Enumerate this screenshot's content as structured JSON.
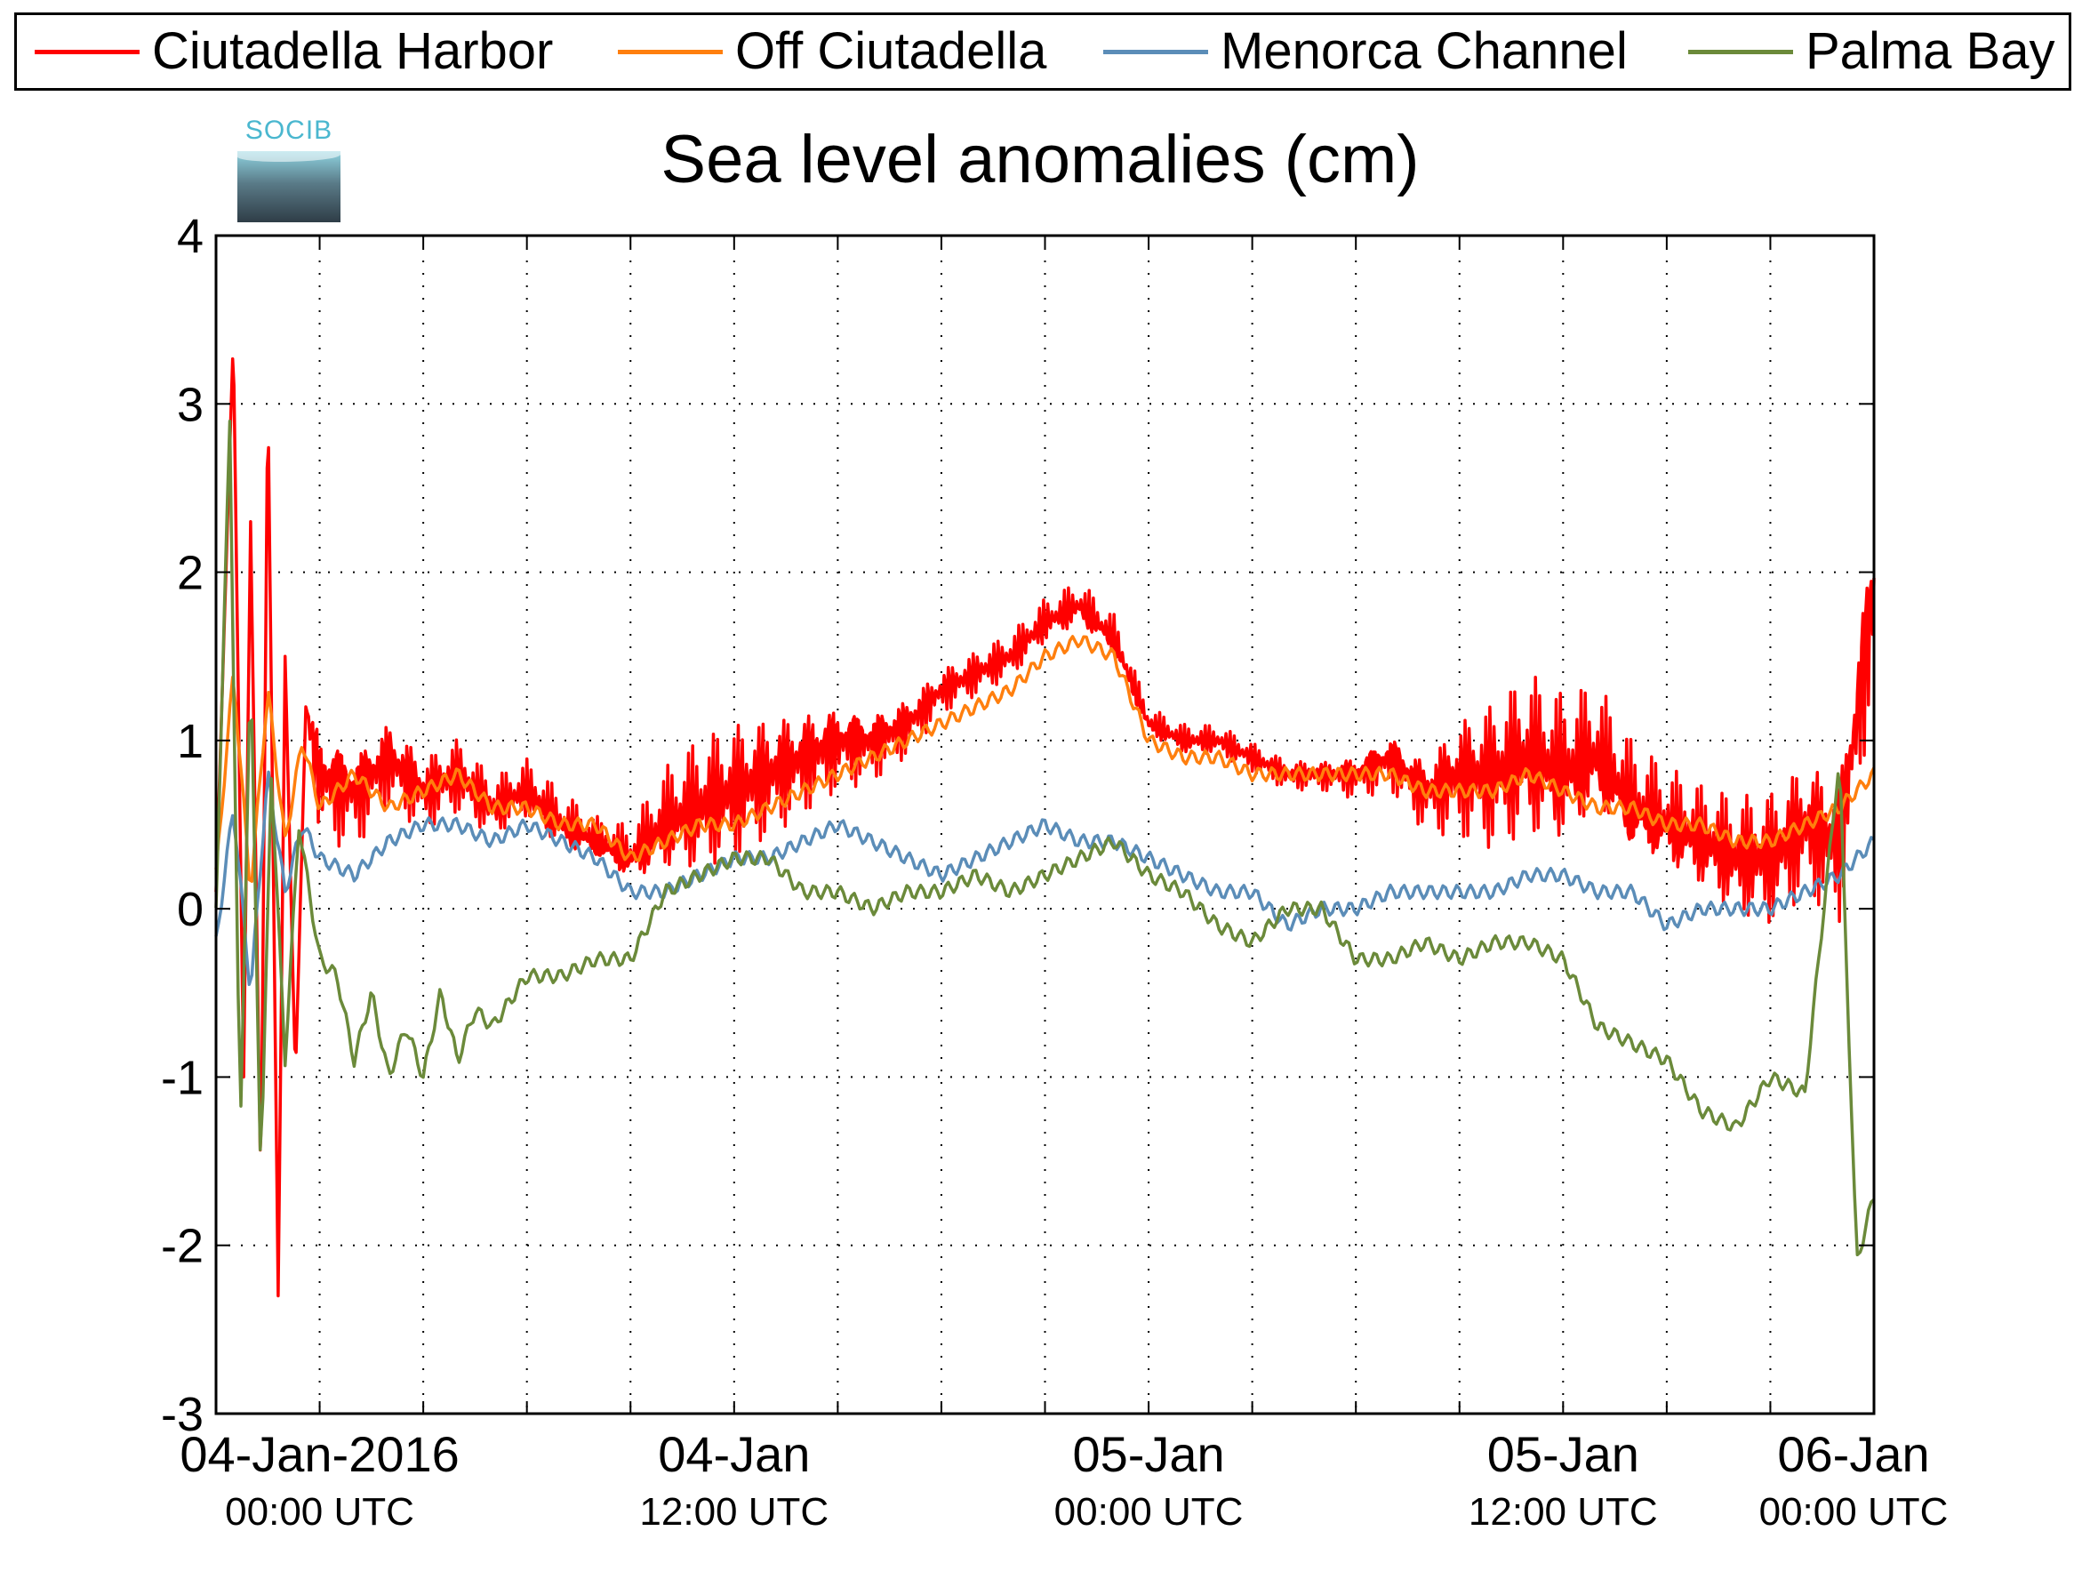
{
  "legend": {
    "items": [
      {
        "label": "Ciutadella Harbor",
        "color": "#ff0000"
      },
      {
        "label": "Off Ciutadella",
        "color": "#ff7f0e"
      },
      {
        "label": "Menorca Channel",
        "color": "#5b8db8"
      },
      {
        "label": "Palma Bay",
        "color": "#6b8a3a"
      }
    ]
  },
  "logo": {
    "text": "SOCIB"
  },
  "chart_data": {
    "type": "line",
    "title": "Sea level anomalies (cm)",
    "xlabel": "",
    "ylabel": "",
    "ylim": [
      -3,
      4
    ],
    "xlim_hours": [
      -3,
      45
    ],
    "grid": true,
    "legend_position": "top",
    "yticks": [
      "-3",
      "-2",
      "-1",
      "0",
      "1",
      "2",
      "3",
      "4"
    ],
    "xtick_labels": [
      {
        "hour": 0,
        "date": "04-Jan-2016",
        "time": "00:00 UTC"
      },
      {
        "hour": 12,
        "date": "04-Jan",
        "time": "12:00 UTC"
      },
      {
        "hour": 24,
        "date": "05-Jan",
        "time": "00:00 UTC"
      },
      {
        "hour": 36,
        "date": "05-Jan",
        "time": "12:00 UTC"
      },
      {
        "hour": 48,
        "date": "06-Jan",
        "time": "00:00 UTC"
      }
    ],
    "series": [
      {
        "name": "Ciutadella Harbor",
        "color": "#ff0000",
        "x": [
          -3,
          -2.5,
          -2.2,
          -2,
          -1.7,
          -1.5,
          -1.2,
          -1,
          -0.7,
          -0.4,
          0,
          1,
          2,
          3,
          4,
          5,
          6,
          7,
          8,
          9,
          10,
          11,
          12,
          13,
          14,
          15,
          16,
          17,
          18,
          19,
          20,
          21,
          22,
          23,
          24,
          25,
          26,
          27,
          28,
          29,
          30,
          31,
          32,
          33,
          34,
          35,
          36,
          37,
          38,
          39,
          40,
          41,
          42,
          43,
          44,
          45
        ],
        "y": [
          0.1,
          3.4,
          -1.0,
          2.3,
          -1.7,
          3.1,
          -2.3,
          1.5,
          -1.0,
          1.2,
          0.8,
          0.7,
          0.9,
          0.7,
          0.8,
          0.6,
          0.7,
          0.5,
          0.4,
          0.3,
          0.5,
          0.6,
          0.7,
          0.8,
          0.9,
          1.0,
          1.0,
          1.1,
          1.3,
          1.4,
          1.5,
          1.7,
          1.8,
          1.6,
          1.1,
          1.0,
          1.0,
          0.9,
          0.8,
          0.8,
          0.8,
          0.9,
          0.7,
          0.8,
          0.8,
          0.9,
          0.8,
          0.9,
          0.6,
          0.5,
          0.4,
          0.3,
          0.3,
          0.5,
          0.4,
          1.9
        ],
        "amp": [
          0,
          0,
          0,
          0,
          0,
          0,
          0,
          0,
          0,
          0,
          0.4,
          0.35,
          0.3,
          0.25,
          0.25,
          0.2,
          0.2,
          0.2,
          0.15,
          0.2,
          0.35,
          0.45,
          0.45,
          0.4,
          0.35,
          0.3,
          0.25,
          0.2,
          0.15,
          0.15,
          0.15,
          0.15,
          0.15,
          0.15,
          0.1,
          0.1,
          0.1,
          0.1,
          0.1,
          0.1,
          0.15,
          0.2,
          0.25,
          0.4,
          0.5,
          0.55,
          0.5,
          0.45,
          0.4,
          0.35,
          0.35,
          0.4,
          0.45,
          0.45,
          0.5,
          0.6
        ]
      },
      {
        "name": "Off Ciutadella",
        "color": "#ff7f0e",
        "x": [
          -3,
          -2.5,
          -2,
          -1.5,
          -1,
          -0.5,
          0,
          1,
          2,
          3,
          4,
          5,
          6,
          7,
          8,
          9,
          10,
          11,
          12,
          13,
          14,
          15,
          16,
          17,
          18,
          19,
          20,
          21,
          22,
          23,
          24,
          25,
          26,
          27,
          28,
          29,
          30,
          31,
          32,
          33,
          34,
          35,
          36,
          37,
          38,
          39,
          40,
          41,
          42,
          43,
          44,
          45
        ],
        "y": [
          0.2,
          1.4,
          0.1,
          1.3,
          0.4,
          1.0,
          0.6,
          0.8,
          0.6,
          0.7,
          0.8,
          0.6,
          0.6,
          0.5,
          0.5,
          0.3,
          0.4,
          0.5,
          0.5,
          0.6,
          0.7,
          0.8,
          0.9,
          1.0,
          1.1,
          1.2,
          1.3,
          1.5,
          1.6,
          1.5,
          1.0,
          0.9,
          0.9,
          0.8,
          0.8,
          0.8,
          0.8,
          0.8,
          0.7,
          0.7,
          0.7,
          0.8,
          0.7,
          0.6,
          0.6,
          0.5,
          0.5,
          0.4,
          0.4,
          0.5,
          0.6,
          0.8
        ],
        "amp": []
      },
      {
        "name": "Menorca Channel",
        "color": "#5b8db8",
        "x": [
          -3,
          -2.5,
          -2,
          -1.5,
          -1,
          -0.5,
          0,
          1,
          2,
          3,
          4,
          5,
          6,
          7,
          8,
          9,
          10,
          11,
          12,
          13,
          14,
          15,
          16,
          17,
          18,
          19,
          20,
          21,
          22,
          23,
          24,
          25,
          26,
          27,
          28,
          29,
          30,
          31,
          32,
          33,
          34,
          35,
          36,
          37,
          38,
          39,
          40,
          41,
          42,
          43,
          44,
          45
        ],
        "y": [
          -0.2,
          0.6,
          -0.5,
          0.8,
          0.1,
          0.5,
          0.3,
          0.2,
          0.4,
          0.5,
          0.5,
          0.4,
          0.5,
          0.4,
          0.3,
          0.1,
          0.1,
          0.2,
          0.3,
          0.3,
          0.4,
          0.5,
          0.4,
          0.3,
          0.2,
          0.3,
          0.4,
          0.5,
          0.4,
          0.4,
          0.3,
          0.2,
          0.1,
          0.1,
          -0.1,
          0.0,
          0.0,
          0.1,
          0.1,
          0.1,
          0.1,
          0.2,
          0.2,
          0.1,
          0.1,
          -0.1,
          0.0,
          0.0,
          0.0,
          0.1,
          0.2,
          0.4
        ],
        "amp": []
      },
      {
        "name": "Palma Bay",
        "color": "#6b8a3a",
        "x": [
          -3,
          -2.6,
          -2.3,
          -2,
          -1.7,
          -1.4,
          -1,
          -0.6,
          0,
          0.5,
          1,
          1.5,
          2,
          2.5,
          3,
          3.5,
          4,
          4.5,
          5,
          6,
          7,
          8,
          9,
          10,
          11,
          12,
          13,
          14,
          15,
          16,
          17,
          18,
          19,
          20,
          21,
          22,
          23,
          24,
          25,
          26,
          27,
          28,
          29,
          30,
          31,
          32,
          33,
          34,
          35,
          36,
          37,
          38,
          39,
          40,
          41,
          42,
          43,
          44,
          44.5,
          45
        ],
        "y": [
          0.0,
          2.9,
          -1.4,
          1.5,
          -1.6,
          0.8,
          -0.9,
          0.5,
          -0.3,
          -0.4,
          -0.9,
          -0.5,
          -1.0,
          -0.7,
          -1.0,
          -0.5,
          -0.9,
          -0.6,
          -0.7,
          -0.4,
          -0.4,
          -0.3,
          -0.3,
          0.1,
          0.2,
          0.3,
          0.3,
          0.1,
          0.1,
          0.0,
          0.1,
          0.1,
          0.2,
          0.1,
          0.2,
          0.3,
          0.4,
          0.2,
          0.1,
          -0.1,
          -0.2,
          0.0,
          0.0,
          -0.3,
          -0.3,
          -0.2,
          -0.3,
          -0.2,
          -0.2,
          -0.3,
          -0.7,
          -0.8,
          -0.9,
          -1.2,
          -1.3,
          -1.0,
          -1.1,
          0.9,
          -2.1,
          -1.7
        ],
        "amp": []
      }
    ]
  }
}
